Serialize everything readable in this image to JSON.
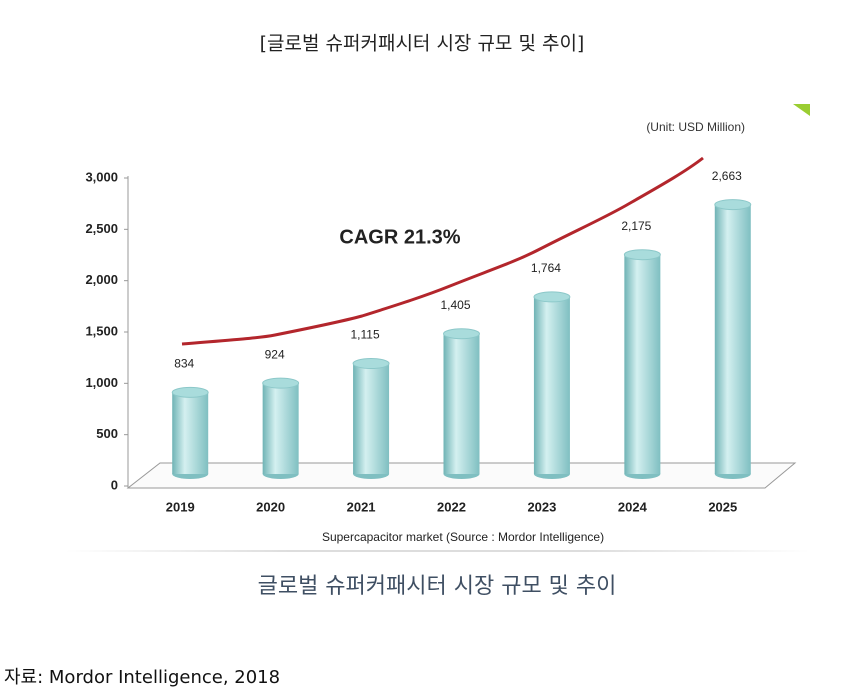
{
  "header": {
    "title": "[글로벌 슈퍼커패시터 시장 규모 및 추이]"
  },
  "chart_data": {
    "type": "bar",
    "unit_note": "(Unit: USD Million)",
    "annotation": "CAGR 21.3%",
    "x_label": "Supercapacitor market (Source : Mordor Intelligence)",
    "categories": [
      "2019",
      "2020",
      "2021",
      "2022",
      "2023",
      "2024",
      "2025"
    ],
    "values": [
      834,
      924,
      1115,
      1405,
      1764,
      2175,
      2663
    ],
    "value_labels": [
      "834",
      "924",
      "1,115",
      "1,405",
      "1,764",
      "2,175",
      "2,663"
    ],
    "color": "#a9dcdc",
    "trend_color": "#b3262c",
    "ylim": [
      0,
      3000
    ],
    "yticks": [
      0,
      500,
      {
        "value": 1000,
        "label": "1,000"
      },
      {
        "value": 1500,
        "label": "1,500"
      },
      {
        "value": 2000,
        "label": "2,000"
      },
      {
        "value": 2500,
        "label": "2,500"
      },
      {
        "value": 3000,
        "label": "3,000"
      }
    ]
  },
  "caption": "글로벌 슈퍼커패시터 시장 규모 및 추이",
  "source": "자료: Mordor Intelligence, 2018"
}
